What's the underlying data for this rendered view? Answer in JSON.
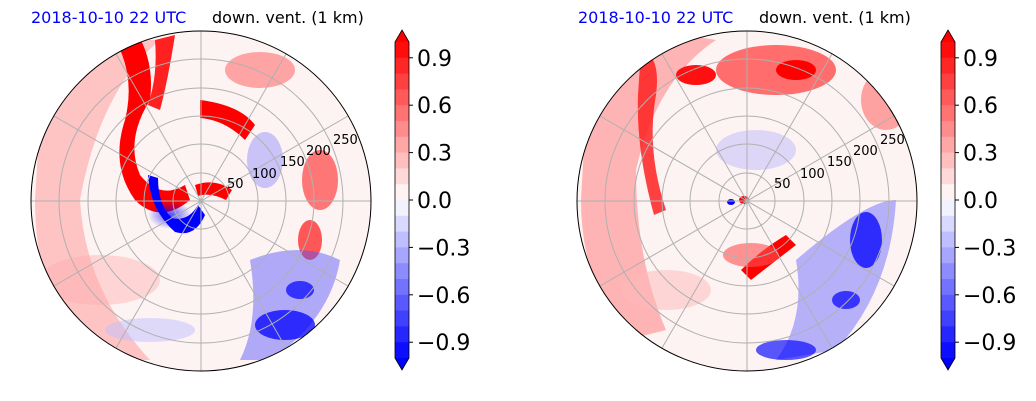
{
  "chart_data": [
    {
      "type": "heatmap",
      "projection": "polar",
      "title_left": "2018-10-10 22 UTC",
      "title_right": "down. vent. (1 km)",
      "title_left_color": "#0000ff",
      "radial_ticks": [
        "50",
        "100",
        "150",
        "200",
        "250"
      ],
      "radial_tick_values": [
        50,
        100,
        150,
        200,
        250
      ],
      "rmax": 300,
      "grid": true,
      "colorbar": {
        "ticks": [
          "0.9",
          "0.6",
          "0.3",
          "0.0",
          "−0.3",
          "−0.6",
          "−0.9"
        ],
        "tick_values": [
          0.9,
          0.6,
          0.3,
          0.0,
          -0.3,
          -0.6,
          -0.9
        ],
        "range": [
          -1.0,
          1.0
        ],
        "extend": "both",
        "colormap": "bwr",
        "color_low": "#0000ff",
        "color_mid": "#ffffff",
        "color_high": "#ff0000"
      }
    },
    {
      "type": "heatmap",
      "projection": "polar",
      "title_left": "2018-10-10 22 UTC",
      "title_right": "down. vent. (1 km)",
      "title_left_color": "#0000ff",
      "radial_ticks": [
        "50",
        "100",
        "150",
        "200",
        "250"
      ],
      "radial_tick_values": [
        50,
        100,
        150,
        200,
        250
      ],
      "rmax": 300,
      "grid": true,
      "colorbar": {
        "ticks": [
          "0.9",
          "0.6",
          "0.3",
          "0.0",
          "−0.3",
          "−0.6",
          "−0.9"
        ],
        "tick_values": [
          0.9,
          0.6,
          0.3,
          0.0,
          -0.3,
          -0.6,
          -0.9
        ],
        "range": [
          -1.0,
          1.0
        ],
        "extend": "both",
        "colormap": "bwr",
        "color_low": "#0000ff",
        "color_mid": "#ffffff",
        "color_high": "#ff0000"
      }
    }
  ]
}
